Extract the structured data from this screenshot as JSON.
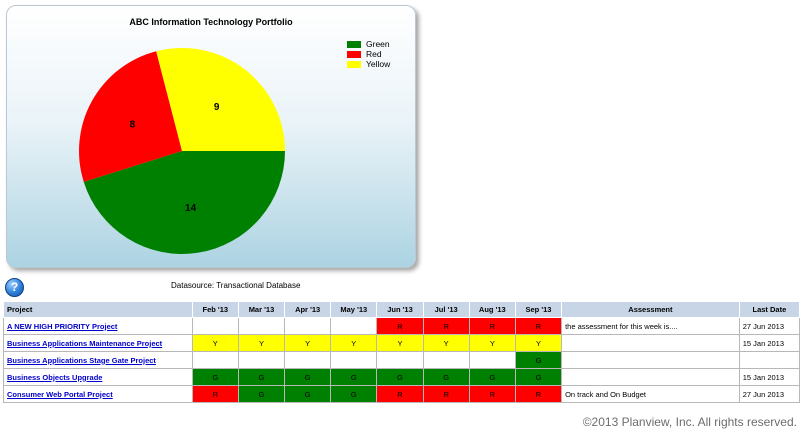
{
  "chart": {
    "title": "ABC Information Technology Portfolio",
    "legend": [
      {
        "label": "Green",
        "color": "#008000"
      },
      {
        "label": "Red",
        "color": "#ff0000"
      },
      {
        "label": "Yellow",
        "color": "#ffff00"
      }
    ]
  },
  "chart_data": {
    "type": "pie",
    "title": "ABC Information Technology Portfolio",
    "legend_position": "top-right",
    "slices": [
      {
        "name": "Green",
        "value": 14,
        "color": "#008000"
      },
      {
        "name": "Red",
        "value": 8,
        "color": "#ff0000"
      },
      {
        "name": "Yellow",
        "value": 9,
        "color": "#ffff00"
      }
    ]
  },
  "help_icon": {
    "glyph": "?"
  },
  "datasource": "Datasource: Transactional Database",
  "table": {
    "headers": {
      "project": "Project",
      "months": [
        "Feb '13",
        "Mar '13",
        "Apr '13",
        "May '13",
        "Jun '13",
        "Jul '13",
        "Aug '13",
        "Sep '13"
      ],
      "assessment": "Assessment",
      "last_date": "Last Date"
    },
    "rows": [
      {
        "project": "A NEW HIGH PRIORITY Project",
        "statuses": [
          "",
          "",
          "",
          "",
          "R",
          "R",
          "R",
          "R"
        ],
        "assessment": "the assessment for this week is....",
        "last_date": "27 Jun 2013"
      },
      {
        "project": "Business Applications Maintenance Project",
        "statuses": [
          "Y",
          "Y",
          "Y",
          "Y",
          "Y",
          "Y",
          "Y",
          "Y"
        ],
        "assessment": "",
        "last_date": "15 Jan 2013"
      },
      {
        "project": "Business Applications Stage Gate Project",
        "statuses": [
          "",
          "",
          "",
          "",
          "",
          "",
          "",
          "G"
        ],
        "assessment": "",
        "last_date": ""
      },
      {
        "project": "Business Objects Upgrade",
        "statuses": [
          "G",
          "G",
          "G",
          "G",
          "G",
          "G",
          "G",
          "G"
        ],
        "assessment": "",
        "last_date": "15 Jan 2013"
      },
      {
        "project": "Consumer Web Portal Project",
        "statuses": [
          "R",
          "G",
          "G",
          "G",
          "R",
          "R",
          "R",
          "R"
        ],
        "assessment": "On track and On Budget",
        "last_date": "27 Jun 2013"
      }
    ]
  },
  "copyright": "©2013 Planview, Inc. All rights reserved."
}
